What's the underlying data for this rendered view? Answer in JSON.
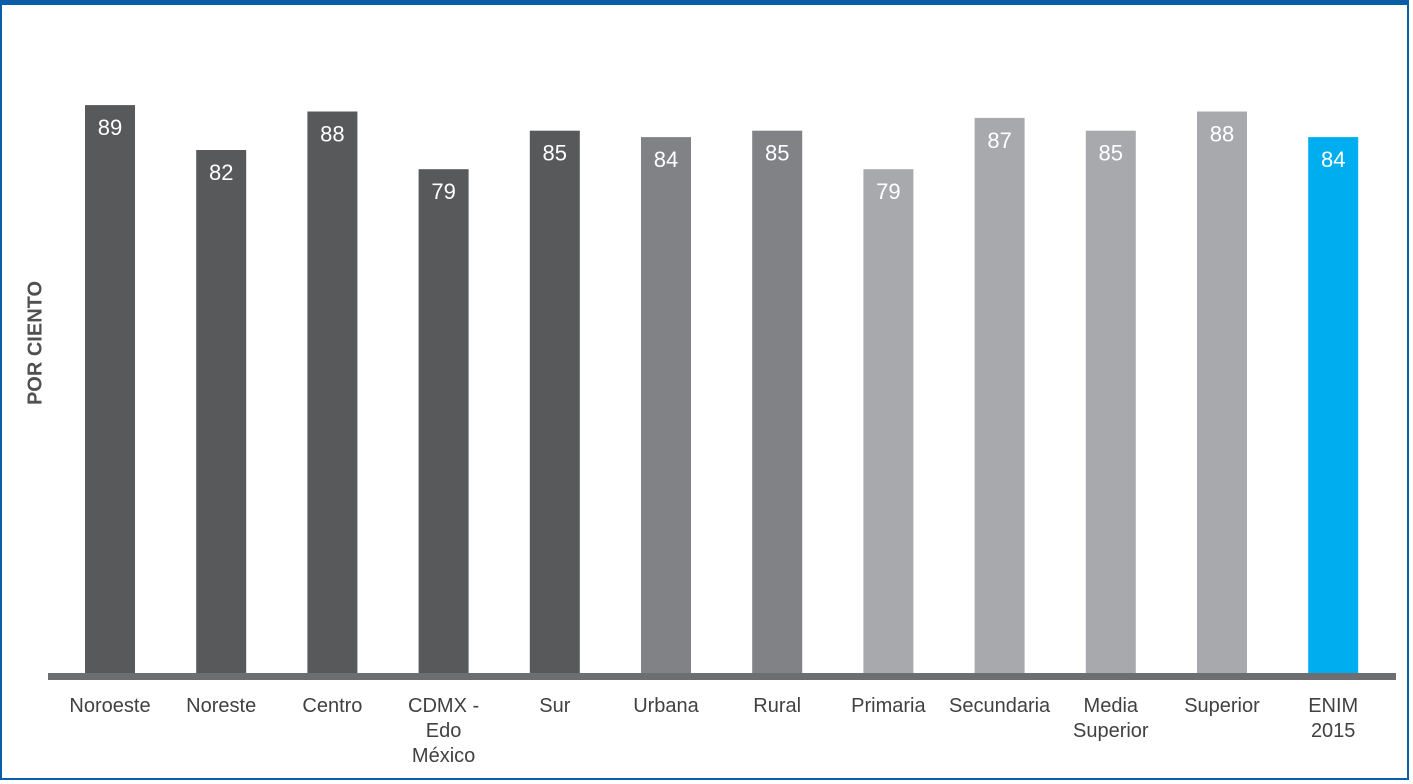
{
  "chart_data": {
    "type": "bar",
    "title": "",
    "xlabel": "",
    "ylabel": "POR CIENTO",
    "ylim": [
      0,
      100
    ],
    "grid": false,
    "categories": [
      "Noroeste",
      "Noreste",
      "Centro",
      "CDMX - Edo México",
      "Sur",
      "Urbana",
      "Rural",
      "Primaria",
      "Secundaria",
      "Media Superior",
      "Superior",
      "ENIM 2015"
    ],
    "category_lines": [
      [
        "Noroeste"
      ],
      [
        "Noreste"
      ],
      [
        "Centro"
      ],
      [
        "CDMX -",
        "Edo",
        "México"
      ],
      [
        "Sur"
      ],
      [
        "Urbana"
      ],
      [
        "Rural"
      ],
      [
        "Primaria"
      ],
      [
        "Secundaria"
      ],
      [
        "Media",
        "Superior"
      ],
      [
        "Superior"
      ],
      [
        "ENIM",
        "2015"
      ]
    ],
    "values": [
      89,
      82,
      88,
      79,
      85,
      84,
      85,
      79,
      87,
      85,
      88,
      84
    ],
    "bar_colors": [
      "#58595b",
      "#58595b",
      "#58595b",
      "#58595b",
      "#58595b",
      "#808285",
      "#808285",
      "#a7a9ac",
      "#a7a9ac",
      "#a7a9ac",
      "#a7a9ac",
      "#00aeef"
    ],
    "axis_color": "#6d6e71",
    "label_color": "#ffffff",
    "tick_color": "#414042"
  }
}
